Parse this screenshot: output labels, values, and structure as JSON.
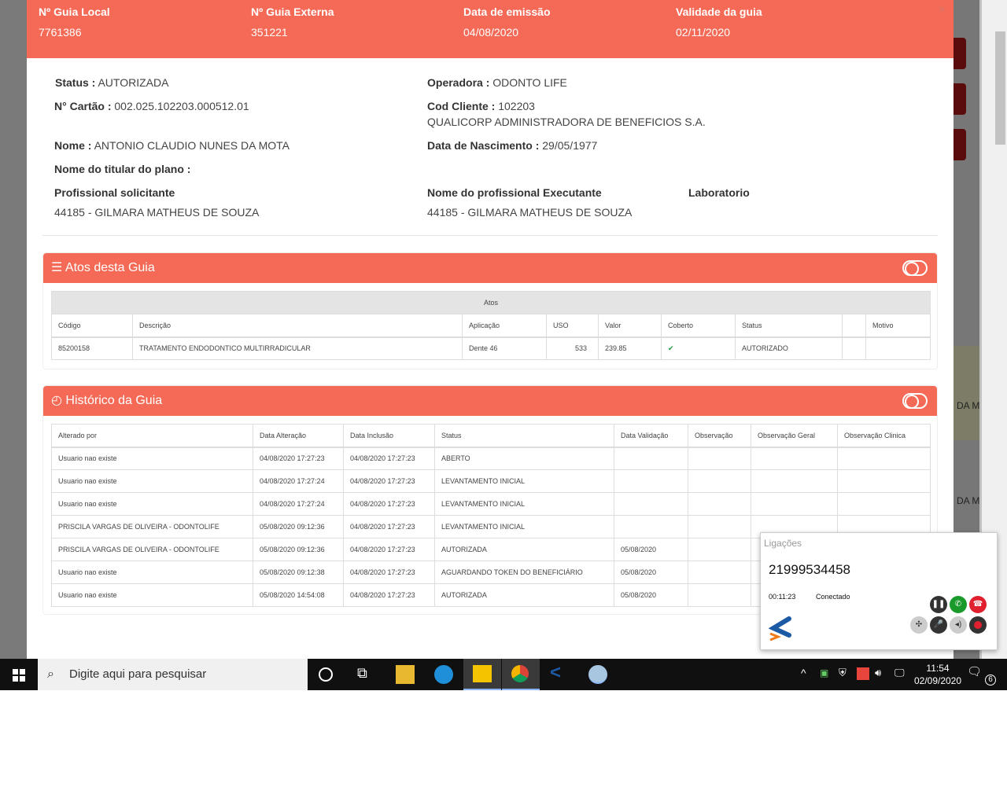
{
  "header": {
    "cols": [
      {
        "label": "Nº Guia Local",
        "value": "7761386"
      },
      {
        "label": "Nº Guia Externa",
        "value": "351221"
      },
      {
        "label": "Data de emissão",
        "value": "04/08/2020"
      },
      {
        "label": "Validade da guia",
        "value": "02/11/2020"
      }
    ],
    "close": "×"
  },
  "info": {
    "status_label": "Status :",
    "status": "AUTORIZADA",
    "operadora_label": "Operadora :",
    "operadora": "ODONTO LIFE",
    "cartao_label": "N° Cartão :",
    "cartao": "002.025.102203.000512.01",
    "cod_label": "Cod Cliente :",
    "cod": "102203",
    "empresa": "QUALICORP ADMINISTRADORA DE BENEFICIOS S.A.",
    "nome_label": "Nome :",
    "nome": "ANTONIO CLAUDIO NUNES DA MOTA",
    "nasc_label": "Data de Nascimento :",
    "nasc": "29/05/1977",
    "titular_label": "Nome do titular do plano :",
    "solicitante_label": "Profissional solicitante",
    "solicitante": "44185 - GILMARA MATHEUS DE SOUZA",
    "executante_label": "Nome do profissional Executante",
    "executante": "44185 - GILMARA MATHEUS DE SOUZA",
    "laboratorio_label": "Laboratorio"
  },
  "atos": {
    "title": "Atos desta Guia",
    "group": "Atos",
    "columns": [
      "Código",
      "Descrição",
      "Aplicação",
      "USO",
      "Valor",
      "Coberto",
      "Status",
      "",
      "Motivo"
    ],
    "rows": [
      {
        "codigo": "85200158",
        "descricao": "TRATAMENTO ENDODONTICO MULTIRRADICULAR",
        "aplicacao": "Dente 46",
        "uso": "533",
        "valor": "239.85",
        "coberto": "✔",
        "status": "AUTORIZADO",
        "extra": "",
        "motivo": ""
      }
    ]
  },
  "historico": {
    "title": "Histórico da Guia",
    "columns": [
      "Alterado por",
      "Data Alteração",
      "Data Inclusão",
      "Status",
      "Data Validação",
      "Observação",
      "Observação Geral",
      "Observação Clinica"
    ],
    "rows": [
      [
        "Usuario nao existe",
        "04/08/2020 17:27:23",
        "04/08/2020 17:27:23",
        "ABERTO",
        "",
        "",
        "",
        ""
      ],
      [
        "Usuario nao existe",
        "04/08/2020 17:27:24",
        "04/08/2020 17:27:23",
        "LEVANTAMENTO INICIAL",
        "",
        "",
        "",
        ""
      ],
      [
        "Usuario nao existe",
        "04/08/2020 17:27:24",
        "04/08/2020 17:27:23",
        "LEVANTAMENTO INICIAL",
        "",
        "",
        "",
        ""
      ],
      [
        "PRISCILA VARGAS DE OLIVEIRA - ODONTOLIFE",
        "05/08/2020 09:12:36",
        "04/08/2020 17:27:23",
        "LEVANTAMENTO INICIAL",
        "",
        "",
        "",
        ""
      ],
      [
        "PRISCILA VARGAS DE OLIVEIRA - ODONTOLIFE",
        "05/08/2020 09:12:36",
        "04/08/2020 17:27:23",
        "AUTORIZADA",
        "05/08/2020",
        "",
        "",
        ""
      ],
      [
        "Usuario nao existe",
        "05/08/2020 09:12:38",
        "04/08/2020 17:27:23",
        "AGUARDANDO TOKEN DO BENEFICIÁRIO",
        "05/08/2020",
        "",
        "",
        ""
      ],
      [
        "Usuario nao existe",
        "05/08/2020 14:54:08",
        "04/08/2020 17:27:23",
        "AUTORIZADA",
        "05/08/2020",
        "",
        "",
        ""
      ]
    ]
  },
  "phone": {
    "title": "Ligações",
    "number": "21999534458",
    "timer": "00:11:23",
    "state": "Conectado"
  },
  "background": {
    "text1": "DA M",
    "text2": "DA M"
  },
  "taskbar": {
    "search_placeholder": "Digite aqui para pesquisar",
    "time": "11:54",
    "date": "02/09/2020",
    "notifications": "6"
  },
  "colors": {
    "accent": "#f46a56",
    "taskbar": "#101010"
  }
}
